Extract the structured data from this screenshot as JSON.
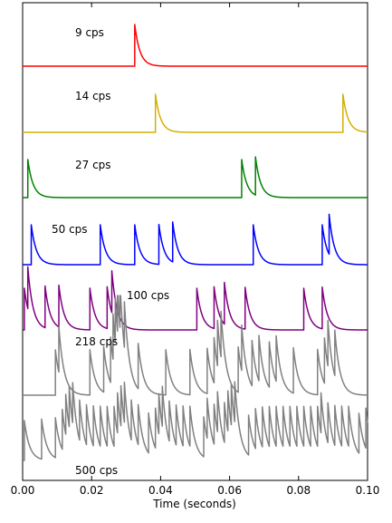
{
  "chart_data": {
    "type": "line",
    "xlabel": "Time (seconds)",
    "ylabel": "",
    "title": "",
    "xlim": [
      0.0,
      0.1
    ],
    "xticks": [
      "0.00",
      "0.02",
      "0.04",
      "0.06",
      "0.08",
      "0.10"
    ],
    "grid": false,
    "decay_time_constant_seconds": 0.0015,
    "series": [
      {
        "name": "9 cps",
        "color": "#ff0000",
        "spikes": [
          0.0325
        ]
      },
      {
        "name": "14 cps",
        "color": "#d4b000",
        "spikes": [
          0.0385,
          0.0928
        ]
      },
      {
        "name": "27 cps",
        "color": "#008000",
        "spikes": [
          0.0015,
          0.0635,
          0.0675
        ]
      },
      {
        "name": "50 cps",
        "color": "#0000ff",
        "spikes": [
          0.0025,
          0.0225,
          0.0325,
          0.0395,
          0.0435,
          0.0668,
          0.0868,
          0.0888
        ]
      },
      {
        "name": "100 cps",
        "color": "#800080",
        "spikes": [
          0.0005,
          0.0015,
          0.0065,
          0.0105,
          0.0195,
          0.0245,
          0.0258,
          0.0505,
          0.0555,
          0.0585,
          0.0645,
          0.0815,
          0.0868
        ]
      },
      {
        "name": "218 cps",
        "color": "#808080",
        "spikes": [
          0.0095,
          0.0105,
          0.0195,
          0.0235,
          0.0255,
          0.0262,
          0.0268,
          0.0275,
          0.0282,
          0.0295,
          0.0335,
          0.0415,
          0.0485,
          0.0535,
          0.0555,
          0.0565,
          0.0575,
          0.0625,
          0.0635,
          0.0665,
          0.0685,
          0.0715,
          0.0735,
          0.0785,
          0.0855,
          0.0875,
          0.0885,
          0.0905
        ]
      },
      {
        "name": "500 cps",
        "color": "#808080",
        "spikes": [
          0.0005,
          0.0055,
          0.0095,
          0.0115,
          0.0125,
          0.0135,
          0.0145,
          0.0165,
          0.0185,
          0.0205,
          0.0225,
          0.0245,
          0.0265,
          0.0275,
          0.0285,
          0.0295,
          0.0315,
          0.0335,
          0.0365,
          0.0385,
          0.0395,
          0.0405,
          0.0425,
          0.0445,
          0.0465,
          0.0485,
          0.0525,
          0.0535,
          0.0555,
          0.0565,
          0.0585,
          0.0595,
          0.0605,
          0.0615,
          0.0655,
          0.0675,
          0.0695,
          0.0715,
          0.0735,
          0.0755,
          0.0775,
          0.0795,
          0.0815,
          0.0835,
          0.0855,
          0.0865,
          0.0885,
          0.0905,
          0.0925,
          0.0945,
          0.0975,
          0.0995
        ]
      }
    ]
  }
}
